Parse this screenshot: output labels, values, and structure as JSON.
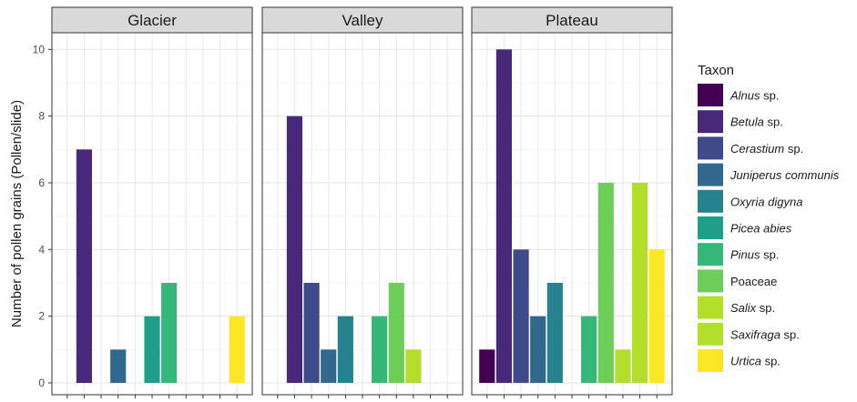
{
  "chart_data": {
    "type": "bar",
    "ylabel": "Number of pollen grains (Pollen/slide)",
    "ylim": [
      0,
      10.5
    ],
    "y_ticks": [
      0,
      2,
      4,
      6,
      8,
      10
    ],
    "grid": true,
    "legend": {
      "title": "Taxon",
      "placement": "right",
      "entries": [
        {
          "italic": "Alnus",
          "plain": " sp.",
          "color": "#440154"
        },
        {
          "italic": "Betula",
          "plain": " sp.",
          "color": "#482878"
        },
        {
          "italic": "Cerastium",
          "plain": " sp.",
          "color": "#3E4A89"
        },
        {
          "italic": "Juniperus communis",
          "plain": "",
          "color": "#31688E"
        },
        {
          "italic": "Oxyria digyna",
          "plain": "",
          "color": "#26828E"
        },
        {
          "italic": "Picea abies",
          "plain": "",
          "color": "#1F9E89"
        },
        {
          "italic": "Pinus",
          "plain": " sp.",
          "color": "#35B779"
        },
        {
          "italic": "",
          "plain": "Poaceae",
          "color": "#6DCD59"
        },
        {
          "italic": "Salix",
          "plain": " sp.",
          "color": "#B4DE2C"
        },
        {
          "italic": "Saxifraga",
          "plain": " sp.",
          "color": "#B4DE2C"
        },
        {
          "italic": "Urtica",
          "plain": " sp.",
          "color": "#FDE725"
        }
      ]
    },
    "taxa": [
      "Alnus sp.",
      "Betula sp.",
      "Cerastium sp.",
      "Juniperus communis",
      "Oxyria digyna",
      "Picea abies",
      "Pinus sp.",
      "Poaceae",
      "Salix sp.",
      "Saxifraga sp.",
      "Urtica sp."
    ],
    "bar_colors": [
      "#440154",
      "#482878",
      "#3E4A89",
      "#31688E",
      "#26828E",
      "#1F9E89",
      "#35B779",
      "#6DCD59",
      "#B4DE2C",
      "#B4DE2C",
      "#FDE725"
    ],
    "facets": [
      {
        "name": "Glacier",
        "values": [
          0,
          7,
          0,
          1,
          0,
          2,
          3,
          0,
          0,
          0,
          2
        ]
      },
      {
        "name": "Valley",
        "values": [
          0,
          8,
          3,
          1,
          2,
          0,
          2,
          3,
          1,
          0,
          0
        ]
      },
      {
        "name": "Plateau",
        "values": [
          1,
          10,
          4,
          2,
          3,
          0,
          2,
          6,
          1,
          6,
          4
        ]
      }
    ]
  }
}
